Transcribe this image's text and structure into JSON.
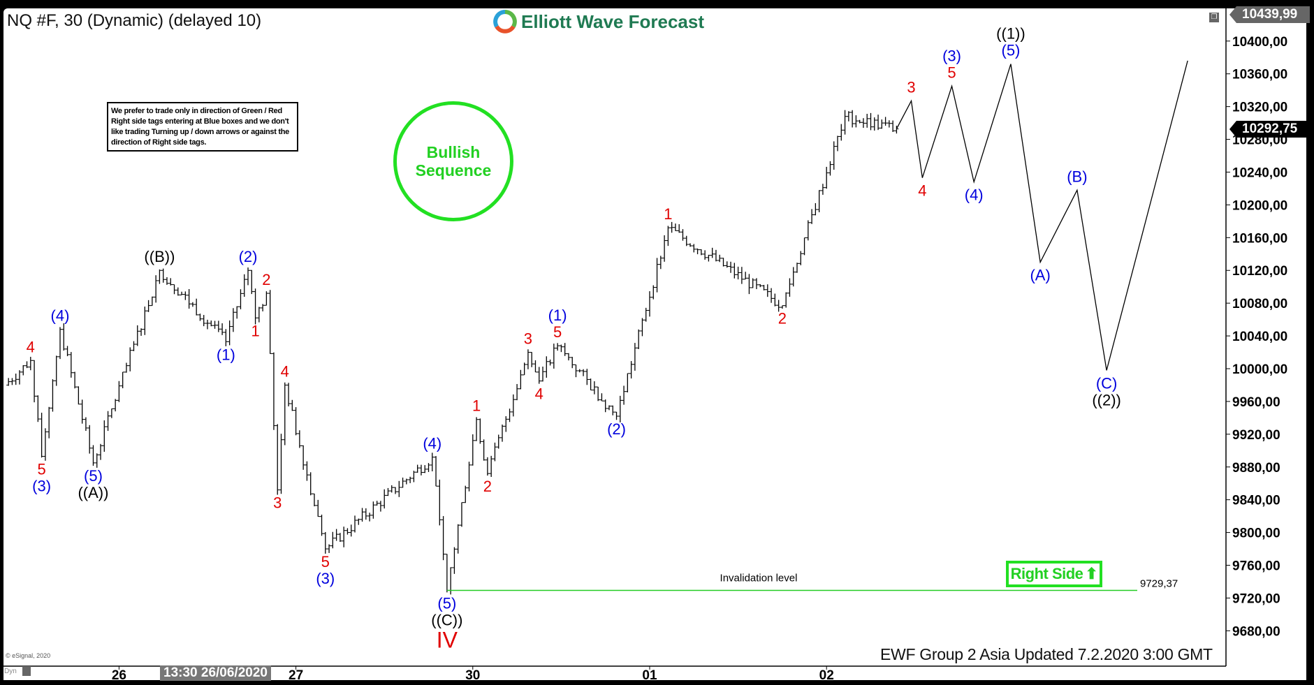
{
  "header": {
    "title": "NQ #F, 30 (Dynamic) (delayed 10)",
    "logo_text": "Elliott Wave Forecast"
  },
  "notice": "We prefer to trade only in direction of Green / Red Right side tags entering at Blue boxes and we don't like trading Turning up / down arrows or against the direction of Right side tags.",
  "badge": {
    "line1": "Bullish",
    "line2": "Sequence",
    "color": "#22e022"
  },
  "right_side": {
    "label": "Right Side",
    "icon": "arrow-up-icon"
  },
  "footer": "EWF Group 2 Asia Updated 7.2.2020 3:00 GMT",
  "copyright": "© eSignal, 2020",
  "dyn_label": "Dyn",
  "cursor_time": "13:30 26/06/2020",
  "price_tags": {
    "high": "10439,99",
    "last": "10292,75"
  },
  "chart_data": {
    "type": "ohlc-bar",
    "symbol": "NQ #F",
    "interval": "30",
    "ylim": [
      9650,
      10440
    ],
    "y_ticks": [
      "10400,00",
      "10360,00",
      "10320,00",
      "10280,00",
      "10240,00",
      "10200,00",
      "10160,00",
      "10120,00",
      "10080,00",
      "10040,00",
      "10000,00",
      "9960,00",
      "9920,00",
      "9880,00",
      "9840,00",
      "9800,00",
      "9760,00",
      "9720,00",
      "9680,00"
    ],
    "x_ticks": [
      "26",
      "27",
      "30",
      "01",
      "02"
    ],
    "trading_days": [
      "06/25",
      "06/26",
      "06/27",
      "06/30",
      "07/01",
      "07/02",
      "07/03",
      "07/06"
    ],
    "price_path": [
      {
        "t": "06/25 08:30",
        "p": 9980,
        "labels": []
      },
      {
        "t": "06/25 12:00",
        "p": 10010,
        "side": "above",
        "labels": [
          [
            "4",
            "red"
          ]
        ]
      },
      {
        "t": "06/25 13:30",
        "p": 9893,
        "side": "below",
        "labels": [
          [
            "5",
            "red"
          ],
          [
            "(3)",
            "blue"
          ]
        ]
      },
      {
        "t": "06/25 16:00",
        "p": 10048,
        "side": "above",
        "labels": [
          [
            "(4)",
            "blue"
          ]
        ]
      },
      {
        "t": "06/25 20:30",
        "p": 9885,
        "side": "below",
        "labels": [
          [
            "(5)",
            "blue"
          ],
          [
            "((A))",
            "black"
          ]
        ]
      },
      {
        "t": "06/26 05:30",
        "p": 10120,
        "side": "above",
        "labels": [
          [
            "((B))",
            "black"
          ]
        ]
      },
      {
        "t": "06/26 14:30",
        "p": 10033,
        "side": "below",
        "labels": [
          [
            "(1)",
            "blue"
          ]
        ]
      },
      {
        "t": "06/26 17:30",
        "p": 10120,
        "side": "above",
        "labels": [
          [
            "(2)",
            "blue"
          ]
        ]
      },
      {
        "t": "06/26 18:30",
        "p": 10062,
        "side": "below",
        "labels": [
          [
            "1",
            "red"
          ]
        ]
      },
      {
        "t": "06/26 20:00",
        "p": 10092,
        "side": "above",
        "labels": [
          [
            "2",
            "red"
          ]
        ]
      },
      {
        "t": "06/26 21:30",
        "p": 9852,
        "side": "below",
        "labels": [
          [
            "3",
            "red"
          ]
        ]
      },
      {
        "t": "06/26 22:30",
        "p": 9980,
        "side": "above",
        "labels": [
          [
            "4",
            "red"
          ]
        ]
      },
      {
        "t": "06/27 04:00",
        "p": 9780,
        "side": "below",
        "labels": [
          [
            "5",
            "red"
          ],
          [
            "(3)",
            "blue"
          ]
        ]
      },
      {
        "t": "06/27 18:30",
        "p": 9892,
        "side": "above",
        "labels": [
          [
            "(4)",
            "blue"
          ]
        ]
      },
      {
        "t": "06/27 20:30",
        "p": 9729.37,
        "side": "below",
        "labels": [
          [
            "(5)",
            "blue"
          ],
          [
            "((C))",
            "black"
          ],
          [
            "IV",
            "red-big"
          ]
        ]
      },
      {
        "t": "06/30 00:30",
        "p": 9938,
        "side": "above",
        "labels": [
          [
            "1",
            "red"
          ]
        ]
      },
      {
        "t": "06/30 02:00",
        "p": 9872,
        "side": "below",
        "labels": [
          [
            "2",
            "red"
          ]
        ]
      },
      {
        "t": "06/30 07:30",
        "p": 10020,
        "side": "above",
        "labels": [
          [
            "3",
            "red"
          ]
        ]
      },
      {
        "t": "06/30 09:00",
        "p": 9985,
        "side": "below",
        "labels": [
          [
            "4",
            "red"
          ]
        ]
      },
      {
        "t": "06/30 11:30",
        "p": 10028,
        "side": "above",
        "labels": [
          [
            "(1)",
            "blue"
          ],
          [
            "5",
            "red"
          ]
        ]
      },
      {
        "t": "06/30 19:30",
        "p": 9942,
        "side": "below",
        "labels": [
          [
            "(2)",
            "blue"
          ]
        ]
      },
      {
        "t": "07/01 02:30",
        "p": 10172,
        "side": "above",
        "labels": [
          [
            "1",
            "red"
          ]
        ]
      },
      {
        "t": "07/01 18:00",
        "p": 10077,
        "side": "below",
        "labels": [
          [
            "2",
            "red"
          ]
        ]
      },
      {
        "t": "07/02 02:30",
        "p": 10308,
        "labels": []
      },
      {
        "t": "07/02 09:30",
        "p": 10292.75,
        "labels": []
      }
    ],
    "projection": [
      {
        "t": "07/02 09:30",
        "p": 10292.75,
        "labels": []
      },
      {
        "t": "07/02 11:30",
        "p": 10327,
        "side": "above",
        "labels": [
          [
            "3",
            "red"
          ]
        ]
      },
      {
        "t": "07/02 13:00",
        "p": 10233,
        "side": "below",
        "labels": [
          [
            "4",
            "red"
          ]
        ]
      },
      {
        "t": "07/02 17:00",
        "p": 10345,
        "side": "above",
        "labels": [
          [
            "(3)",
            "blue"
          ],
          [
            "5",
            "red"
          ]
        ]
      },
      {
        "t": "07/02 20:00",
        "p": 10228,
        "side": "below",
        "labels": [
          [
            "(4)",
            "blue"
          ]
        ]
      },
      {
        "t": "07/03 01:00",
        "p": 10372,
        "side": "above",
        "labels": [
          [
            "((1))",
            "black"
          ],
          [
            "(5)",
            "blue"
          ]
        ]
      },
      {
        "t": "07/03 05:00",
        "p": 10130,
        "side": "below",
        "labels": [
          [
            "(A)",
            "blue"
          ]
        ]
      },
      {
        "t": "07/03 10:00",
        "p": 10218,
        "side": "above",
        "labels": [
          [
            "(B)",
            "blue"
          ]
        ]
      },
      {
        "t": "07/03 14:00",
        "p": 9998,
        "side": "below",
        "labels": [
          [
            "(C)",
            "blue"
          ],
          [
            "((2))",
            "black"
          ]
        ]
      },
      {
        "t": "07/06 01:00",
        "p": 10376,
        "labels": []
      }
    ],
    "invalidation": {
      "label": "Invalidation level",
      "value": 9729.37,
      "value_text": "9729,37",
      "color": "#22cc22"
    },
    "colors": {
      "red": "#e00000",
      "blue": "#0000dd",
      "black": "#000000"
    }
  }
}
